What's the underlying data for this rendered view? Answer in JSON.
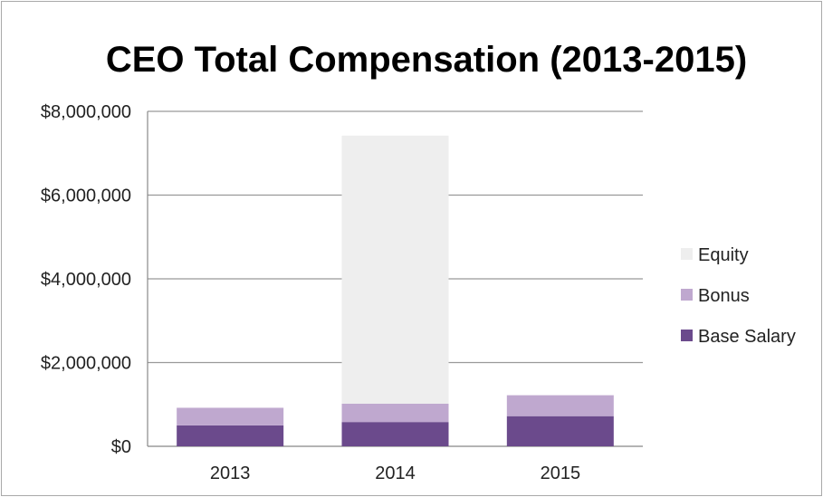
{
  "chart_data": {
    "type": "bar",
    "stacked": true,
    "title": "CEO Total Compensation (2013-2015)",
    "xlabel": "",
    "ylabel": "",
    "categories": [
      "2013",
      "2014",
      "2015"
    ],
    "series": [
      {
        "name": "Base Salary",
        "color": "#6b4a8c",
        "values": [
          500000,
          580000,
          720000
        ]
      },
      {
        "name": "Bonus",
        "color": "#bfa8cf",
        "values": [
          420000,
          440000,
          500000
        ]
      },
      {
        "name": "Equity",
        "color": "#eeeeee",
        "values": [
          0,
          6400000,
          0
        ]
      }
    ],
    "ylim": [
      0,
      8000000
    ],
    "yticks": [
      0,
      2000000,
      4000000,
      6000000,
      8000000
    ],
    "ytick_labels": [
      "$0",
      "$2,000,000",
      "$4,000,000",
      "$6,000,000",
      "$8,000,000"
    ],
    "legend_order": [
      "Equity",
      "Bonus",
      "Base Salary"
    ],
    "legend_position": "right",
    "grid": true,
    "gridline_color": "#999999"
  }
}
